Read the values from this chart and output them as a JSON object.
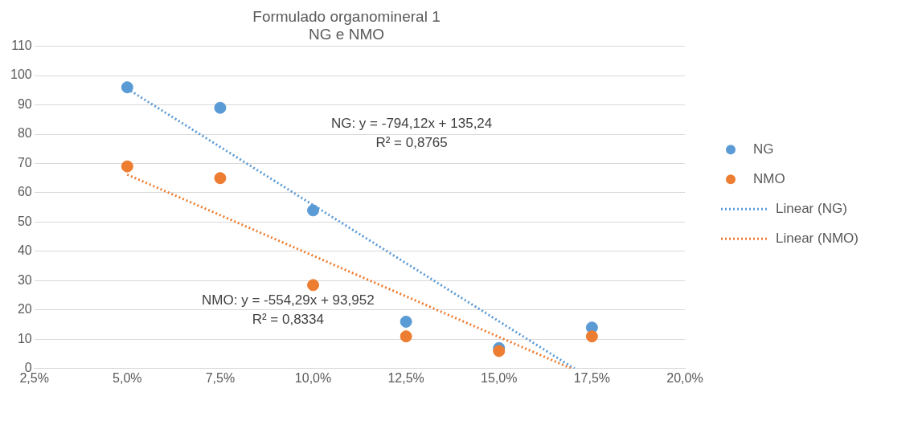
{
  "chart_data": {
    "type": "scatter",
    "title": "Formulado organomineral 1\nNG e NMO",
    "series": [
      {
        "name": "NG",
        "color": "#5b9bd5",
        "x": [
          0.05,
          0.075,
          0.1,
          0.125,
          0.15,
          0.175
        ],
        "values": [
          96,
          89,
          54,
          16,
          7,
          14
        ]
      },
      {
        "name": "NMO",
        "color": "#ed7d31",
        "x": [
          0.05,
          0.075,
          0.1,
          0.125,
          0.15,
          0.175
        ],
        "values": [
          69,
          65,
          28.5,
          11,
          6,
          11
        ]
      },
      {
        "name": "Linear (NG)",
        "type": "line",
        "line_style": "dotted",
        "marker": "none",
        "color": "#5b9bd5",
        "x": [
          0.05,
          0.1703
        ],
        "values": [
          95.5,
          0
        ]
      },
      {
        "name": "Linear (NMO)",
        "type": "line",
        "line_style": "dotted",
        "marker": "none",
        "color": "#ed7d31",
        "x": [
          0.05,
          0.1695
        ],
        "values": [
          66.2,
          0
        ]
      }
    ],
    "xlim": [
      0.025,
      0.2
    ],
    "xticks": [
      {
        "value": 0.025,
        "label": "2,5%"
      },
      {
        "value": 0.05,
        "label": "5,0%"
      },
      {
        "value": 0.075,
        "label": "7,5%"
      },
      {
        "value": 0.1,
        "label": "10,0%"
      },
      {
        "value": 0.125,
        "label": "12,5%"
      },
      {
        "value": 0.15,
        "label": "15,0%"
      },
      {
        "value": 0.175,
        "label": "17,5%"
      },
      {
        "value": 0.2,
        "label": "20,0%"
      }
    ],
    "ylim": [
      0,
      110
    ],
    "yticks": [
      0,
      10,
      20,
      30,
      40,
      50,
      60,
      70,
      80,
      90,
      100,
      110
    ],
    "grid": "y",
    "legend": "right",
    "marker": "circle",
    "annotations": [
      "NG: y = -794,12x + 135,24\nR² = 0,8765",
      "NMO: y = -554,29x + 93,952\nR² = 0,8334"
    ]
  }
}
